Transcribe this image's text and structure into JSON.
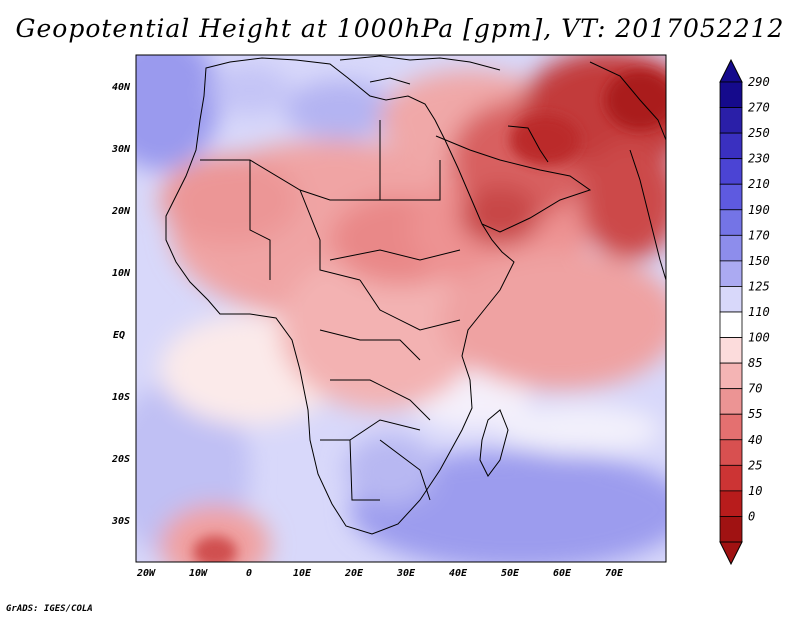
{
  "title": "Geopotential Height at 1000hPa [gpm], VT: 2017052212",
  "credit": "GrADS: IGES/COLA",
  "map": {
    "region": "Africa, Middle East and western Indian Ocean",
    "lat_labels": [
      "40N",
      "30N",
      "20N",
      "10N",
      "EQ",
      "10S",
      "20S",
      "30S"
    ],
    "lon_labels": [
      "20W",
      "10W",
      "0",
      "10E",
      "20E",
      "30E",
      "40E",
      "50E",
      "60E",
      "70E"
    ]
  },
  "colorbar": {
    "labels": [
      "290",
      "270",
      "250",
      "230",
      "210",
      "190",
      "170",
      "150",
      "125",
      "110",
      "100",
      "85",
      "70",
      "55",
      "40",
      "25",
      "10",
      "0"
    ],
    "colors": [
      "#150a8c",
      "#2a1fa8",
      "#3a30c0",
      "#4b44d4",
      "#5e5ae0",
      "#7474e6",
      "#8d8dec",
      "#abaaf2",
      "#d8d8fa",
      "#ffffff",
      "#fcdcdc",
      "#f4b4b4",
      "#ec9494",
      "#e47070",
      "#d85050",
      "#cc3434",
      "#b81c1c",
      "#a01212"
    ]
  },
  "colors": {
    "background": "#ffffff",
    "border": "#000000"
  }
}
